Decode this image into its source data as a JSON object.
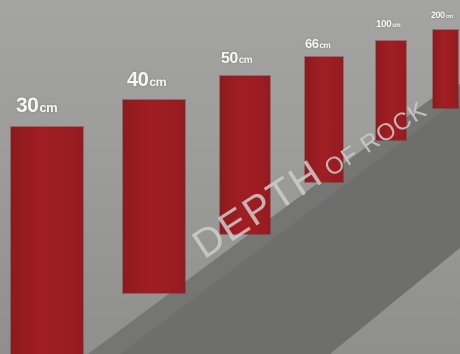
{
  "pillars": [
    {
      "num": "30",
      "unit": "cm"
    },
    {
      "num": "40",
      "unit": "cm"
    },
    {
      "num": "50",
      "unit": "cm"
    },
    {
      "num": "66",
      "unit": "cm"
    },
    {
      "num": "100",
      "unit": "cm"
    },
    {
      "num": "200",
      "unit": "cm"
    }
  ],
  "floor": {
    "main": "DEPTH",
    "sub": "OF ROCK"
  },
  "colors": {
    "pillar": "#a11e23",
    "wall": "#a4a4a2",
    "floor": "#6b6b69",
    "label": "#f6f6f4"
  }
}
